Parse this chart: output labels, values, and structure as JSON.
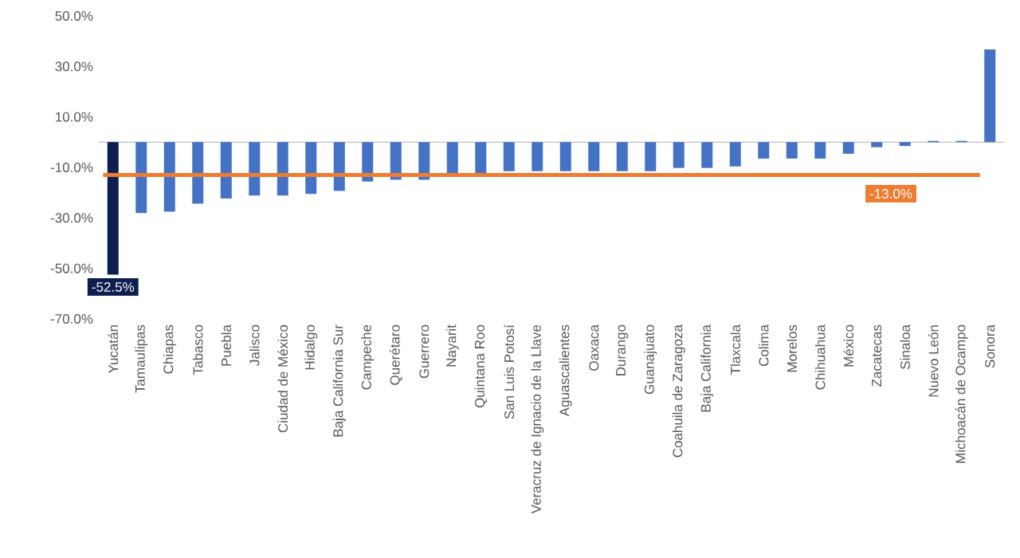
{
  "chart_data": {
    "type": "bar",
    "categories": [
      "Yucatán",
      "Tamaulipas",
      "Chiapas",
      "Tabasco",
      "Puebla",
      "Jalisco",
      "Ciudad de México",
      "Hidalgo",
      "Baja California Sur",
      "Campeche",
      "Querétaro",
      "Guerrero",
      "Nayarit",
      "Quintana Roo",
      "San Luis Potosí",
      "Veracruz de Ignacio de la Llave",
      "Aguascalientes",
      "Oaxaca",
      "Durango",
      "Guanajuato",
      "Coahuila de Zaragoza",
      "Baja California",
      "Tlaxcala",
      "Colima",
      "Morelos",
      "Chihuahua",
      "México",
      "Zacatecas",
      "Sinaloa",
      "Nuevo León",
      "Michoacán de Ocampo",
      "Sonora"
    ],
    "values": [
      -52.5,
      -28.1,
      -27.5,
      -24.4,
      -22.3,
      -21.1,
      -21.1,
      -20.5,
      -19.3,
      -15.6,
      -14.9,
      -14.9,
      -13.7,
      -13.7,
      -11.5,
      -11.5,
      -11.5,
      -11.5,
      -11.5,
      -11.5,
      -10.2,
      -10.2,
      -9.6,
      -6.5,
      -6.5,
      -6.5,
      -4.6,
      -2.0,
      -1.5,
      0.5,
      0.5,
      36.7
    ],
    "colors": [
      "#0d1f4f",
      "#4472c4",
      "#4472c4",
      "#4472c4",
      "#4472c4",
      "#4472c4",
      "#4472c4",
      "#4472c4",
      "#4472c4",
      "#4472c4",
      "#4472c4",
      "#4472c4",
      "#4472c4",
      "#4472c4",
      "#4472c4",
      "#4472c4",
      "#4472c4",
      "#4472c4",
      "#4472c4",
      "#4472c4",
      "#4472c4",
      "#4472c4",
      "#4472c4",
      "#4472c4",
      "#4472c4",
      "#4472c4",
      "#4472c4",
      "#4472c4",
      "#4472c4",
      "#4472c4",
      "#4472c4",
      "#4472c4"
    ],
    "value_labels": [
      "-52.5%",
      null,
      null,
      null,
      null,
      null,
      null,
      null,
      null,
      null,
      null,
      null,
      null,
      null,
      null,
      null,
      null,
      null,
      null,
      null,
      null,
      null,
      null,
      null,
      null,
      null,
      null,
      null,
      null,
      null,
      null,
      null
    ],
    "ylim": [
      -70,
      50
    ],
    "yticks": [
      {
        "value": -70,
        "label": "-70.0%"
      },
      {
        "value": -50,
        "label": "-50.0%"
      },
      {
        "value": -30,
        "label": "-30.0%"
      },
      {
        "value": -10,
        "label": "-10.0%"
      },
      {
        "value": 10,
        "label": "10.0%"
      },
      {
        "value": 30,
        "label": "30.0%"
      },
      {
        "value": 50,
        "label": "50.0%"
      }
    ],
    "ref_lines": [
      {
        "axis": "y",
        "value": -13.0,
        "label": "-13.0%",
        "color": "#ed7d31"
      }
    ]
  }
}
